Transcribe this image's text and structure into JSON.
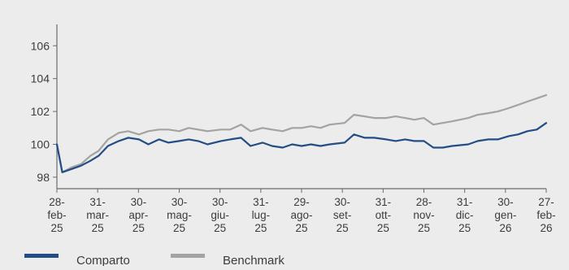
{
  "colors": {
    "background": "#ececec",
    "comparto": "#244d86",
    "benchmark": "#a3a3a3",
    "axis": "#6b6b6b",
    "text": "#3c3c3c"
  },
  "chart_data": {
    "type": "line",
    "title": "",
    "xlabel": "",
    "ylabel": "",
    "ylim": [
      97.3,
      107.3
    ],
    "yticks": [
      98,
      100,
      102,
      104,
      106
    ],
    "grid": false,
    "legend_position": "bottom-left",
    "x_tick_labels": [
      "28-\nfeb-\n25",
      "31-\nmar-\n25",
      "30-\napr-\n25",
      "30-\nmag-\n25",
      "30-\ngiu-\n25",
      "31-\nlug-\n25",
      "29-\nago-\n25",
      "30-\nset-\n25",
      "31-\nott-\n25",
      "28-\nnov-\n25",
      "31-\ndic-\n25",
      "30-\ngen-\n26",
      "27-\nfeb-\n26"
    ],
    "x": [
      "2025-02-28",
      "2025-03-04",
      "2025-03-11",
      "2025-03-18",
      "2025-03-25",
      "2025-03-31",
      "2025-04-07",
      "2025-04-15",
      "2025-04-22",
      "2025-04-30",
      "2025-05-07",
      "2025-05-15",
      "2025-05-22",
      "2025-05-30",
      "2025-06-06",
      "2025-06-13",
      "2025-06-20",
      "2025-06-30",
      "2025-07-07",
      "2025-07-15",
      "2025-07-22",
      "2025-07-31",
      "2025-08-07",
      "2025-08-15",
      "2025-08-22",
      "2025-08-29",
      "2025-09-05",
      "2025-09-12",
      "2025-09-19",
      "2025-09-30",
      "2025-10-07",
      "2025-10-15",
      "2025-10-22",
      "2025-10-31",
      "2025-11-07",
      "2025-11-14",
      "2025-11-21",
      "2025-11-28",
      "2025-12-05",
      "2025-12-12",
      "2025-12-19",
      "2025-12-31",
      "2026-01-07",
      "2026-01-15",
      "2026-01-22",
      "2026-01-30",
      "2026-02-06",
      "2026-02-13",
      "2026-02-20",
      "2026-02-27"
    ],
    "series": [
      {
        "name": "Comparto",
        "color": "#244d86",
        "values": [
          100.0,
          98.3,
          98.5,
          98.7,
          99.0,
          99.3,
          99.9,
          100.2,
          100.4,
          100.3,
          100.0,
          100.3,
          100.1,
          100.2,
          100.3,
          100.2,
          100.0,
          100.2,
          100.3,
          100.4,
          99.9,
          100.1,
          99.9,
          99.8,
          100.0,
          99.9,
          100.0,
          99.9,
          100.0,
          100.1,
          100.6,
          100.4,
          100.4,
          100.3,
          100.2,
          100.3,
          100.2,
          100.2,
          99.8,
          99.8,
          99.9,
          100.0,
          100.2,
          100.3,
          100.3,
          100.5,
          100.6,
          100.8,
          100.9,
          101.3
        ]
      },
      {
        "name": "Benchmark",
        "color": "#a3a3a3",
        "values": [
          100.0,
          98.3,
          98.6,
          98.8,
          99.3,
          99.6,
          100.3,
          100.7,
          100.8,
          100.6,
          100.8,
          100.9,
          100.9,
          100.8,
          101.0,
          100.9,
          100.8,
          100.9,
          100.9,
          101.2,
          100.8,
          101.0,
          100.9,
          100.8,
          101.0,
          101.0,
          101.1,
          101.0,
          101.2,
          101.3,
          101.8,
          101.7,
          101.6,
          101.6,
          101.7,
          101.6,
          101.5,
          101.6,
          101.2,
          101.3,
          101.4,
          101.6,
          101.8,
          101.9,
          102.0,
          102.2,
          102.4,
          102.6,
          102.8,
          103.0
        ]
      }
    ]
  }
}
